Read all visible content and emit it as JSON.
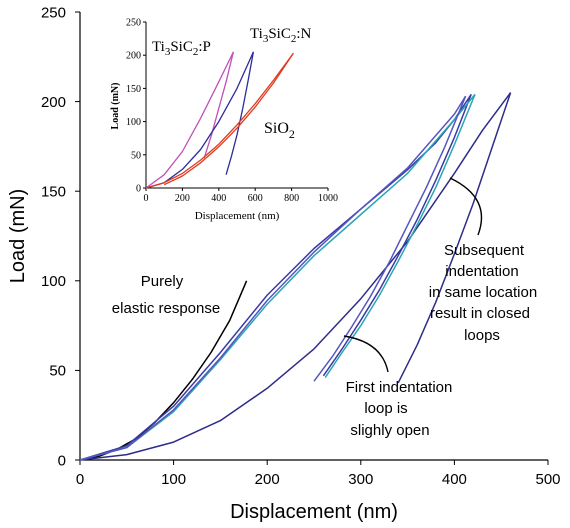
{
  "chart_data": [
    {
      "type": "line",
      "xlabel": "Displacement (nm)",
      "ylabel": "Load (mN)",
      "xlim": [
        0,
        500
      ],
      "ylim": [
        0,
        250
      ],
      "xticks": [
        0,
        100,
        200,
        300,
        400,
        500
      ],
      "yticks": [
        0,
        50,
        100,
        150,
        200,
        250
      ],
      "grid": false,
      "series": [
        {
          "key": "elastic",
          "color": "#000000",
          "x": [
            0,
            20,
            40,
            60,
            80,
            100,
            120,
            140,
            160,
            178
          ],
          "y": [
            0,
            2,
            6,
            12,
            21,
            32,
            45,
            60,
            78,
            100
          ]
        },
        {
          "key": "loop1-load",
          "color": "#2d2d8a",
          "x": [
            0,
            50,
            100,
            150,
            200,
            250,
            300,
            350,
            400,
            430,
            460
          ],
          "y": [
            0,
            3,
            10,
            22,
            40,
            62,
            90,
            122,
            160,
            184,
            205
          ]
        },
        {
          "key": "loop1-unload",
          "color": "#2d2d8a",
          "x": [
            460,
            440,
            420,
            400,
            380,
            360,
            340
          ],
          "y": [
            205,
            174,
            143,
            115,
            88,
            64,
            43
          ]
        },
        {
          "key": "loop2-load",
          "color": "#3a3aa8",
          "x": [
            0,
            50,
            100,
            150,
            200,
            250,
            300,
            350,
            380,
            400,
            418
          ],
          "y": [
            0,
            8,
            30,
            60,
            92,
            118,
            140,
            162,
            177,
            190,
            204
          ]
        },
        {
          "key": "loop2-unload",
          "color": "#3a3aa8",
          "x": [
            418,
            400,
            380,
            360,
            340,
            320,
            300,
            280,
            260
          ],
          "y": [
            204,
            180,
            156,
            134,
            114,
            95,
            78,
            62,
            47
          ]
        },
        {
          "key": "loop3-load",
          "color": "#28a6b4",
          "x": [
            0,
            50,
            100,
            150,
            200,
            250,
            300,
            350,
            400,
            422
          ],
          "y": [
            0,
            7,
            27,
            56,
            87,
            114,
            137,
            160,
            190,
            204
          ]
        },
        {
          "key": "loop3-unload",
          "color": "#28a6b4",
          "x": [
            422,
            400,
            380,
            360,
            340,
            320,
            300,
            280,
            262
          ],
          "y": [
            204,
            176,
            152,
            131,
            111,
            92,
            75,
            60,
            46
          ]
        },
        {
          "key": "loop4-load",
          "color": "#5555c0",
          "x": [
            0,
            50,
            100,
            150,
            200,
            250,
            300,
            350,
            400,
            412
          ],
          "y": [
            0,
            7,
            28,
            57,
            89,
            116,
            140,
            163,
            193,
            203
          ]
        },
        {
          "key": "loop4-unload",
          "color": "#5555c0",
          "x": [
            412,
            390,
            370,
            350,
            330,
            310,
            290,
            270,
            250
          ],
          "y": [
            203,
            175,
            152,
            131,
            110,
            91,
            74,
            58,
            44
          ]
        }
      ],
      "annotations": [
        {
          "lines": [
            "Purely",
            "elastic response"
          ]
        },
        {
          "lines": [
            "Subsequent",
            "indentation",
            "in same location",
            "result in closed",
            "loops"
          ]
        },
        {
          "lines": [
            "First indentation",
            "loop is",
            "slighly open"
          ]
        }
      ]
    },
    {
      "type": "line",
      "title_labels": {
        "p_label": {
          "main": "Ti",
          "sub1": "3",
          "mid": "SiC",
          "sub2": "2",
          "tail": ":P"
        },
        "n_label": {
          "main": "Ti",
          "sub1": "3",
          "mid": "SiC",
          "sub2": "2",
          "tail": ":N"
        },
        "sio2_label": {
          "main": "SiO",
          "sub1": "2"
        }
      },
      "xlabel": "Displacement (nm)",
      "ylabel": "Load (mN)",
      "xlim": [
        0,
        1000
      ],
      "ylim": [
        0,
        250
      ],
      "xticks": [
        0,
        200,
        400,
        600,
        800,
        1000
      ],
      "yticks": [
        0,
        50,
        100,
        150,
        200,
        250
      ],
      "grid": false,
      "series": [
        {
          "key": "P-load",
          "color": "#c050b8",
          "x": [
            0,
            100,
            200,
            300,
            400,
            480
          ],
          "y": [
            0,
            20,
            55,
            105,
            160,
            205
          ]
        },
        {
          "key": "P-unload",
          "color": "#c050b8",
          "x": [
            480,
            440,
            400,
            360,
            320
          ],
          "y": [
            205,
            160,
            120,
            80,
            45
          ]
        },
        {
          "key": "N-load",
          "color": "#2c2c9a",
          "x": [
            0,
            100,
            200,
            300,
            400,
            500,
            590
          ],
          "y": [
            0,
            8,
            28,
            58,
            100,
            150,
            205
          ]
        },
        {
          "key": "N-unload",
          "color": "#2c2c9a",
          "x": [
            590,
            560,
            530,
            500,
            470,
            440
          ],
          "y": [
            205,
            160,
            118,
            80,
            48,
            20
          ]
        },
        {
          "key": "SiO2-load",
          "color": "#e03a20",
          "x": [
            0,
            100,
            200,
            300,
            400,
            500,
            600,
            700,
            810
          ],
          "y": [
            0,
            8,
            22,
            42,
            66,
            95,
            127,
            162,
            203
          ]
        },
        {
          "key": "SiO2-unload",
          "color": "#e03a20",
          "x": [
            810,
            700,
            600,
            500,
            400,
            300,
            200,
            100
          ],
          "y": [
            203,
            158,
            122,
            90,
            62,
            38,
            18,
            5
          ]
        }
      ]
    }
  ]
}
